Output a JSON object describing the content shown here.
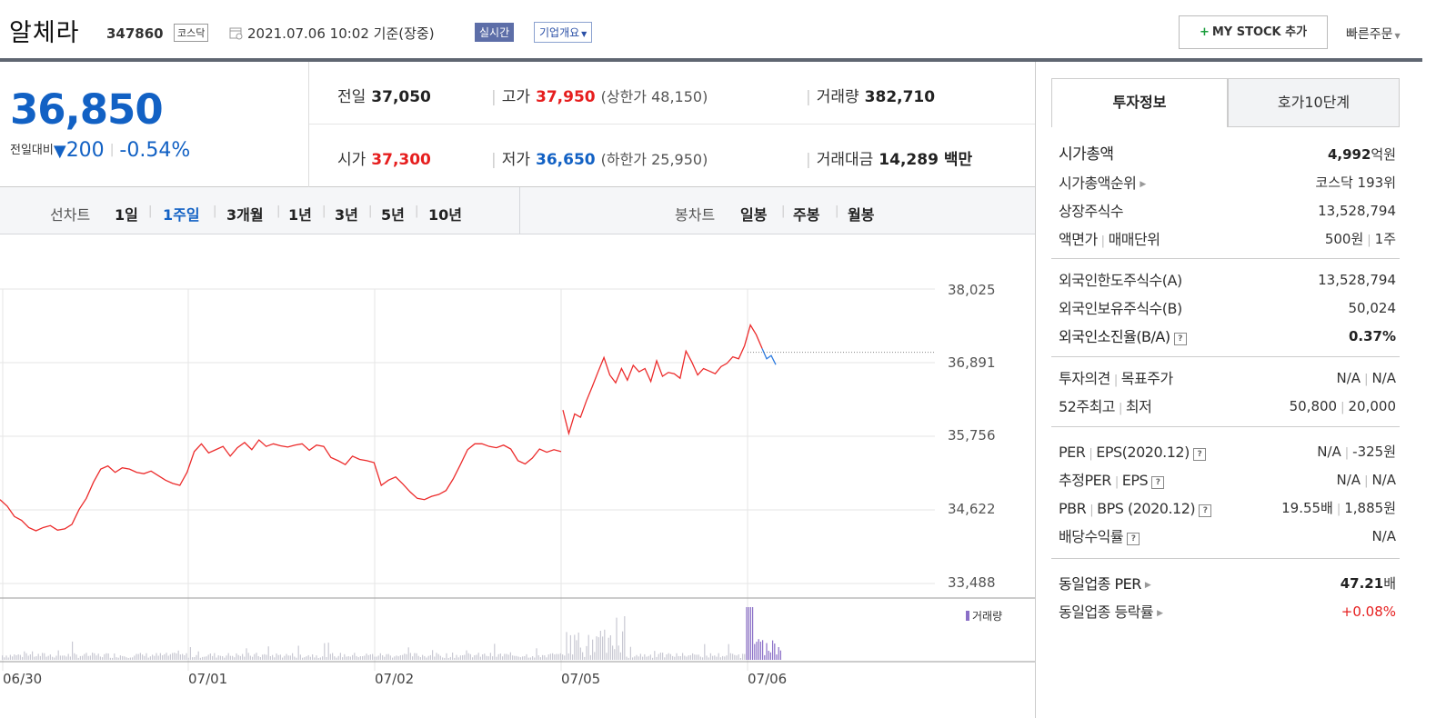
{
  "header": {
    "stock_name": "알체라",
    "stock_code": "347860",
    "market": "코스닥",
    "date": "2021.07.06 10:02",
    "basis": "기준(장중)",
    "realtime_badge": "실시간",
    "company_info_label": "기업개요",
    "my_stock_label": "MY STOCK 추가",
    "quick_order_label": "빠른주문"
  },
  "price": {
    "current": "36,850",
    "change_label": "전일대비",
    "change_value": "200",
    "change_rate": "-0.54%",
    "prev_close_label": "전일",
    "prev_close": "37,050",
    "high_label": "고가",
    "high": "37,950",
    "upper_limit": "(상한가 48,150)",
    "volume_label": "거래량",
    "volume": "382,710",
    "open_label": "시가",
    "open": "37,300",
    "low_label": "저가",
    "low": "36,650",
    "lower_limit": "(하한가 25,950)",
    "trade_value_label": "거래대금",
    "trade_value": "14,289 백만"
  },
  "period_tabs": {
    "line_label": "선차트",
    "line_items": [
      "1일",
      "1주일",
      "3개월",
      "1년",
      "3년",
      "5년",
      "10년"
    ],
    "selected": "1주일",
    "candle_label": "봉차트",
    "candle_items": [
      "일봉",
      "주봉",
      "월봉"
    ]
  },
  "chart_data": {
    "type": "line",
    "y_ticks": [
      "38,025",
      "36,891",
      "35,756",
      "34,622",
      "33,488"
    ],
    "ylim": [
      33488,
      38025
    ],
    "x_ticks": [
      "06/30",
      "07/01",
      "07/02",
      "07/05",
      "07/06"
    ],
    "prev_close": 37050,
    "volume_legend": "거래량",
    "series": [
      {
        "values": [
          34780,
          34680,
          34520,
          34460,
          34350,
          34300,
          34350,
          34380,
          34310,
          34330,
          34400,
          34630,
          34800,
          35050,
          35250,
          35300,
          35200,
          35270,
          35250,
          35200,
          35180,
          35220,
          35150,
          35080,
          35030,
          35000,
          35200,
          35520,
          35640,
          35500,
          35550,
          35600,
          35450,
          35580,
          35660,
          35550,
          35700,
          35600,
          35640,
          35610,
          35590,
          35620,
          35640,
          35540,
          35620,
          35600,
          35430,
          35380,
          35320,
          35450,
          35400,
          35380,
          35350,
          35000,
          35080,
          35130,
          35020,
          34900,
          34800,
          34780,
          34830,
          34860,
          34920,
          35100,
          35320,
          35550,
          35640,
          35640,
          35600,
          35580,
          35620,
          35560,
          35380,
          35330,
          35420,
          35560,
          35510,
          35550,
          35520,
          36160,
          35800,
          36100,
          36050,
          36300,
          36520,
          36750,
          36970,
          36700,
          36580,
          36800,
          36620,
          36850,
          36750,
          36800,
          36600,
          36920,
          36680,
          36740,
          36720,
          36650,
          37070,
          36900,
          36700,
          36800,
          36760,
          36720,
          36830,
          36880,
          36980,
          36950,
          37150,
          37470,
          37320,
          37110
        ]
      },
      {
        "values": [
          37110,
          36950,
          37000,
          36860
        ]
      }
    ]
  },
  "right_panel": {
    "tab_invest": "투자정보",
    "tab_quote": "호가10단계",
    "sec1": [
      {
        "k": "시가총액",
        "v": "4,992",
        "u": "억원"
      },
      {
        "k": "시가총액순위",
        "v": "코스닥 193위"
      },
      {
        "k": "상장주식수",
        "v": "13,528,794"
      },
      {
        "k1": "액면가",
        "k2": "매매단위",
        "v1": "500원",
        "v2": "1주"
      }
    ],
    "sec2": [
      {
        "k": "외국인한도주식수(A)",
        "v": "13,528,794"
      },
      {
        "k": "외국인보유주식수(B)",
        "v": "50,024"
      },
      {
        "k": "외국인소진율(B/A)",
        "v": "0.37%"
      }
    ],
    "sec3": [
      {
        "k1": "투자의견",
        "k2": "목표주가",
        "v1": "N/A",
        "v2": "N/A"
      },
      {
        "k1": "52주최고",
        "k2": "최저",
        "v1": "50,800",
        "v2": "20,000"
      }
    ],
    "sec4": [
      {
        "k1": "PER",
        "k2": "EPS(2020.12)",
        "v1": "N/A",
        "v2": "-325원"
      },
      {
        "k1": "추정PER",
        "k2": "EPS",
        "v1": "N/A",
        "v2": "N/A"
      },
      {
        "k1": "PBR",
        "k2": "BPS (2020.12)",
        "v1": "19.55배",
        "v2": "1,885원"
      },
      {
        "k": "배당수익률",
        "v": "N/A"
      }
    ],
    "sec5": [
      {
        "k": "동일업종 PER",
        "v": "47.21",
        "u": "배"
      },
      {
        "k": "동일업종 등락률",
        "v": "+0.08%"
      }
    ]
  }
}
